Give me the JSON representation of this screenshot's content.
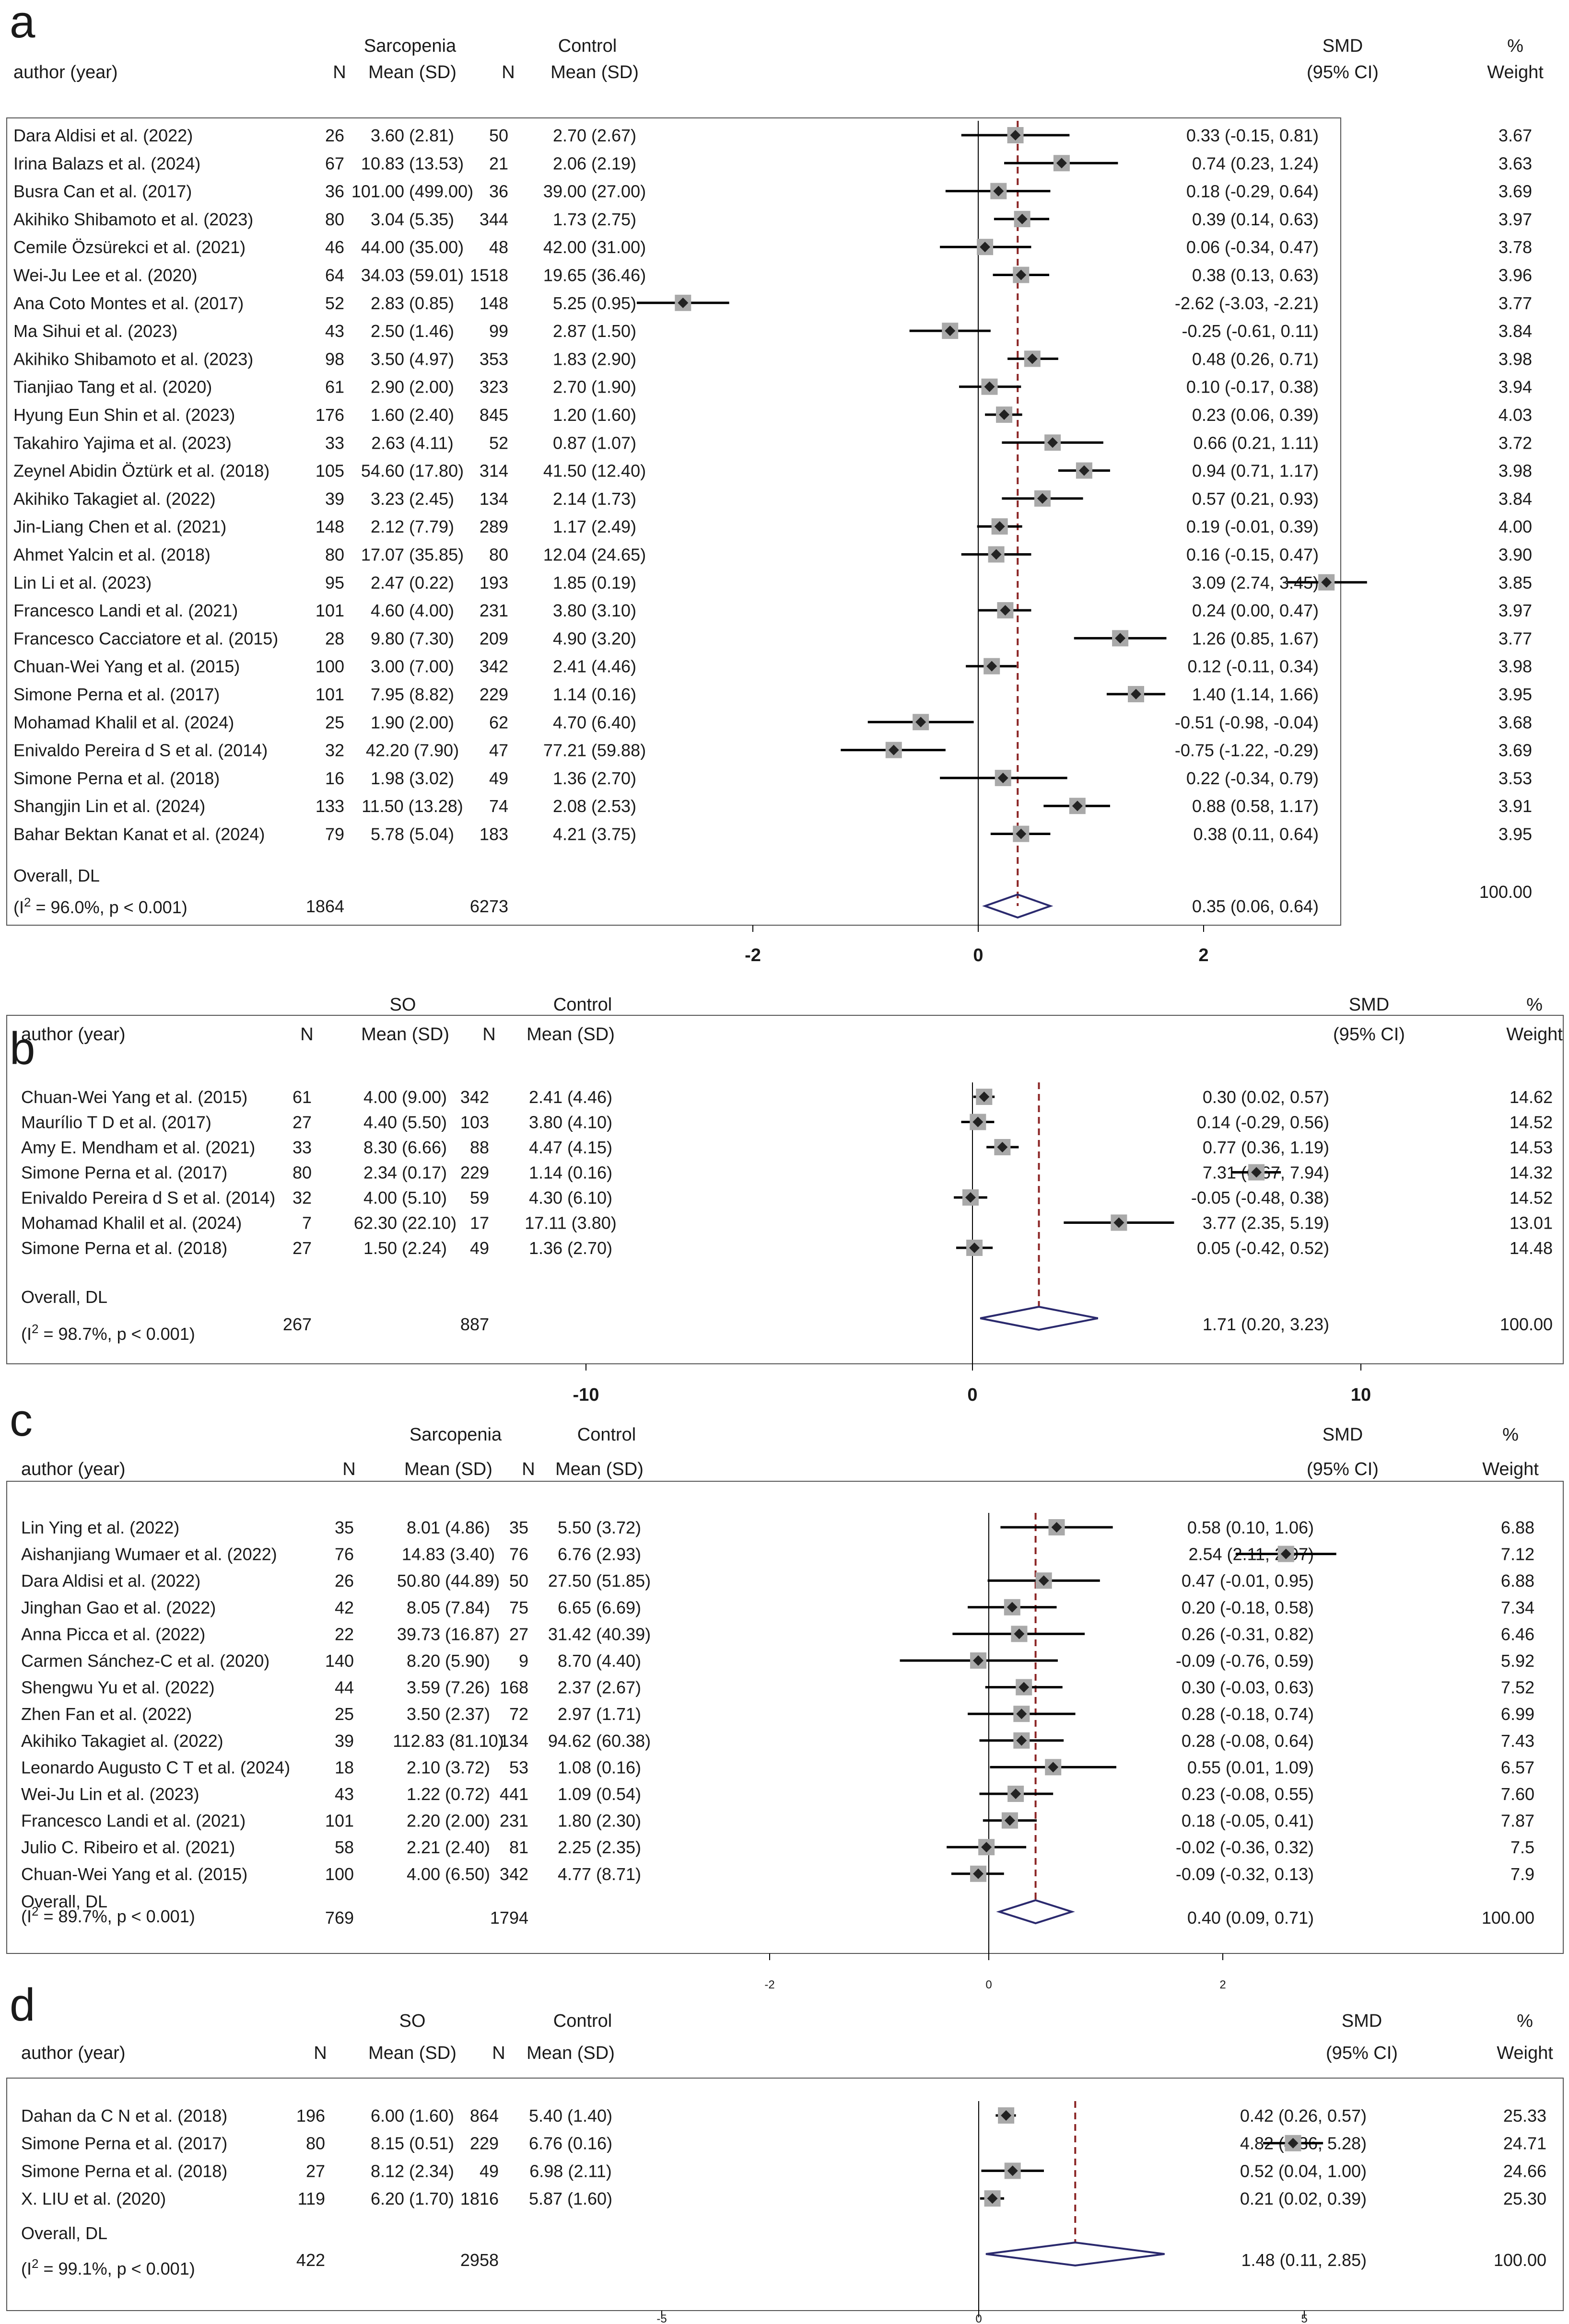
{
  "chart_data": [
    {
      "type": "forest",
      "panel_label": "a",
      "group1_name": "Sarcopenia",
      "group2_name": "Control",
      "col_author": "author (year)",
      "col_n": "N",
      "col_mean": "Mean (SD)",
      "col_smd": "SMD",
      "col_ci": "(95% CI)",
      "col_pct": "%",
      "col_weight": "Weight",
      "xlim": [
        -4,
        4
      ],
      "x_ticks": [
        "-2",
        "0",
        "2"
      ],
      "studies": [
        {
          "author": "Dara Aldisi et al. (2022)",
          "n1": "26",
          "m1": "3.60 (2.81)",
          "n2": "50",
          "m2": "2.70 (2.67)",
          "smd": 0.33,
          "lo": -0.15,
          "hi": 0.81,
          "ci_text": "0.33 (-0.15, 0.81)",
          "weight": "3.67"
        },
        {
          "author": "Irina Balazs  et al. (2024)",
          "n1": "67",
          "m1": "10.83 (13.53)",
          "n2": "21",
          "m2": "2.06 (2.19)",
          "smd": 0.74,
          "lo": 0.23,
          "hi": 1.24,
          "ci_text": "0.74 (0.23, 1.24)",
          "weight": "3.63"
        },
        {
          "author": "Busra Can et al. (2017)",
          "n1": "36",
          "m1": "101.00 (499.00)",
          "n2": "36",
          "m2": "39.00 (27.00)",
          "smd": 0.18,
          "lo": -0.29,
          "hi": 0.64,
          "ci_text": "0.18 (-0.29, 0.64)",
          "weight": "3.69"
        },
        {
          "author": "Akihiko Shibamoto et al. (2023)",
          "n1": "80",
          "m1": "3.04 (5.35)",
          "n2": "344",
          "m2": "1.73 (2.75)",
          "smd": 0.39,
          "lo": 0.14,
          "hi": 0.63,
          "ci_text": "0.39 (0.14, 0.63)",
          "weight": "3.97"
        },
        {
          "author": "Cemile Özsürekci et al. (2021)",
          "n1": "46",
          "m1": "44.00 (35.00)",
          "n2": "48",
          "m2": "42.00 (31.00)",
          "smd": 0.06,
          "lo": -0.34,
          "hi": 0.47,
          "ci_text": "0.06 (-0.34, 0.47)",
          "weight": "3.78"
        },
        {
          "author": "Wei-Ju Lee et al. (2020)",
          "n1": "64",
          "m1": "34.03 (59.01)",
          "n2": "1518",
          "m2": "19.65 (36.46)",
          "smd": 0.38,
          "lo": 0.13,
          "hi": 0.63,
          "ci_text": "0.38 (0.13, 0.63)",
          "weight": "3.96"
        },
        {
          "author": "Ana Coto Montes et al. (2017)",
          "n1": "52",
          "m1": "2.83 (0.85)",
          "n2": "148",
          "m2": "5.25 (0.95)",
          "smd": -2.62,
          "lo": -3.03,
          "hi": -2.21,
          "ci_text": "-2.62 (-3.03, -2.21)",
          "weight": "3.77"
        },
        {
          "author": "Ma Sihui et al. (2023)",
          "n1": "43",
          "m1": "2.50 (1.46)",
          "n2": "99",
          "m2": "2.87 (1.50)",
          "smd": -0.25,
          "lo": -0.61,
          "hi": 0.11,
          "ci_text": "-0.25 (-0.61, 0.11)",
          "weight": "3.84"
        },
        {
          "author": "Akihiko Shibamoto et al. (2023)",
          "n1": "98",
          "m1": "3.50 (4.97)",
          "n2": "353",
          "m2": "1.83 (2.90)",
          "smd": 0.48,
          "lo": 0.26,
          "hi": 0.71,
          "ci_text": "0.48 (0.26, 0.71)",
          "weight": "3.98"
        },
        {
          "author": "Tianjiao Tang et al. (2020)",
          "n1": "61",
          "m1": "2.90 (2.00)",
          "n2": "323",
          "m2": "2.70 (1.90)",
          "smd": 0.1,
          "lo": -0.17,
          "hi": 0.38,
          "ci_text": "0.10 (-0.17, 0.38)",
          "weight": "3.94"
        },
        {
          "author": "Hyung Eun Shin  et al. (2023)",
          "n1": "176",
          "m1": "1.60 (2.40)",
          "n2": "845",
          "m2": "1.20 (1.60)",
          "smd": 0.23,
          "lo": 0.06,
          "hi": 0.39,
          "ci_text": "0.23 (0.06, 0.39)",
          "weight": "4.03"
        },
        {
          "author": "Takahiro Yajima et al. (2023)",
          "n1": "33",
          "m1": "2.63 (4.11)",
          "n2": "52",
          "m2": "0.87 (1.07)",
          "smd": 0.66,
          "lo": 0.21,
          "hi": 1.11,
          "ci_text": "0.66 (0.21, 1.11)",
          "weight": "3.72"
        },
        {
          "author": "Zeynel Abidin Öztürk  et al. (2018)",
          "n1": "105",
          "m1": "54.60 (17.80)",
          "n2": "314",
          "m2": "41.50 (12.40)",
          "smd": 0.94,
          "lo": 0.71,
          "hi": 1.17,
          "ci_text": "0.94 (0.71, 1.17)",
          "weight": "3.98"
        },
        {
          "author": "Akihiko Takagiet al. (2022)",
          "n1": "39",
          "m1": "3.23 (2.45)",
          "n2": "134",
          "m2": "2.14 (1.73)",
          "smd": 0.57,
          "lo": 0.21,
          "hi": 0.93,
          "ci_text": "0.57 (0.21, 0.93)",
          "weight": "3.84"
        },
        {
          "author": "Jin-Liang Chen et al. (2021)",
          "n1": "148",
          "m1": "2.12 (7.79)",
          "n2": "289",
          "m2": "1.17 (2.49)",
          "smd": 0.19,
          "lo": -0.01,
          "hi": 0.39,
          "ci_text": "0.19 (-0.01, 0.39)",
          "weight": "4.00"
        },
        {
          "author": "Ahmet Yalcin  et al. (2018)",
          "n1": "80",
          "m1": "17.07 (35.85)",
          "n2": "80",
          "m2": "12.04 (24.65)",
          "smd": 0.16,
          "lo": -0.15,
          "hi": 0.47,
          "ci_text": "0.16 (-0.15, 0.47)",
          "weight": "3.90"
        },
        {
          "author": "Lin Li et al. (2023)",
          "n1": "95",
          "m1": "2.47 (0.22)",
          "n2": "193",
          "m2": "1.85 (0.19)",
          "smd": 3.09,
          "lo": 2.74,
          "hi": 3.45,
          "ci_text": "3.09 (2.74, 3.45)",
          "weight": "3.85"
        },
        {
          "author": "Francesco Landi et al. (2021)",
          "n1": "101",
          "m1": "4.60 (4.00)",
          "n2": "231",
          "m2": "3.80 (3.10)",
          "smd": 0.24,
          "lo": 0.0,
          "hi": 0.47,
          "ci_text": "0.24 (0.00, 0.47)",
          "weight": "3.97"
        },
        {
          "author": "Francesco Cacciatore et al. (2015)",
          "n1": "28",
          "m1": "9.80 (7.30)",
          "n2": "209",
          "m2": "4.90 (3.20)",
          "smd": 1.26,
          "lo": 0.85,
          "hi": 1.67,
          "ci_text": "1.26 (0.85, 1.67)",
          "weight": "3.77"
        },
        {
          "author": "Chuan-Wei Yang  et al. (2015)",
          "n1": "100",
          "m1": "3.00 (7.00)",
          "n2": "342",
          "m2": "2.41 (4.46)",
          "smd": 0.12,
          "lo": -0.11,
          "hi": 0.34,
          "ci_text": "0.12 (-0.11, 0.34)",
          "weight": "3.98"
        },
        {
          "author": "Simone Perna  et al. (2017)",
          "n1": "101",
          "m1": "7.95 (8.82)",
          "n2": "229",
          "m2": "1.14 (0.16)",
          "smd": 1.4,
          "lo": 1.14,
          "hi": 1.66,
          "ci_text": "1.40 (1.14, 1.66)",
          "weight": "3.95"
        },
        {
          "author": "Mohamad Khalil et al.  (2024)",
          "n1": "25",
          "m1": "1.90 (2.00)",
          "n2": "62",
          "m2": "4.70 (6.40)",
          "smd": -0.51,
          "lo": -0.98,
          "hi": -0.04,
          "ci_text": "-0.51 (-0.98, -0.04)",
          "weight": "3.68"
        },
        {
          "author": "Enivaldo Pereira d S et al. (2014)",
          "n1": "32",
          "m1": "42.20 (7.90)",
          "n2": "47",
          "m2": "77.21 (59.88)",
          "smd": -0.75,
          "lo": -1.22,
          "hi": -0.29,
          "ci_text": "-0.75 (-1.22, -0.29)",
          "weight": "3.69"
        },
        {
          "author": "Simone Perna  et al. (2018)",
          "n1": "16",
          "m1": "1.98 (3.02)",
          "n2": "49",
          "m2": "1.36 (2.70)",
          "smd": 0.22,
          "lo": -0.34,
          "hi": 0.79,
          "ci_text": "0.22 (-0.34, 0.79)",
          "weight": "3.53"
        },
        {
          "author": "Shangjin Lin et al. (2024)",
          "n1": "133",
          "m1": "11.50 (13.28)",
          "n2": "74",
          "m2": "2.08 (2.53)",
          "smd": 0.88,
          "lo": 0.58,
          "hi": 1.17,
          "ci_text": "0.88 (0.58, 1.17)",
          "weight": "3.91"
        },
        {
          "author": "Bahar Bektan Kanat et al. (2024)",
          "n1": "79",
          "m1": "5.78 (5.04)",
          "n2": "183",
          "m2": "4.21 (3.75)",
          "smd": 0.38,
          "lo": 0.11,
          "hi": 0.64,
          "ci_text": "0.38 (0.11, 0.64)",
          "weight": "3.95"
        }
      ],
      "overall": {
        "label": "Overall, DL",
        "n1": "1864",
        "n2": "6273",
        "smd": 0.35,
        "lo": 0.06,
        "hi": 0.64,
        "ci_text": "0.35 (0.06, 0.64)",
        "weight": "100.00"
      },
      "heterogeneity_prefix": "(I",
      "heterogeneity_sup": "2",
      "heterogeneity_rest": " = 96.0%, p < 0.001)"
    },
    {
      "type": "forest",
      "panel_label": "b",
      "group1_name": "SO",
      "group2_name": "Control",
      "col_author": "author (year)",
      "col_n": "N",
      "col_mean": "Mean (SD)",
      "col_smd": "SMD",
      "col_ci": "(95% CI)",
      "col_pct": "%",
      "col_weight": "Weight",
      "xlim": [
        -20,
        16
      ],
      "x_ticks": [
        "-10",
        "0",
        "10"
      ],
      "studies": [
        {
          "author": "Chuan-Wei Yang et al. (2015)",
          "n1": "61",
          "m1": "4.00 (9.00)",
          "n2": "342",
          "m2": "2.41 (4.46)",
          "smd": 0.3,
          "lo": 0.02,
          "hi": 0.57,
          "ci_text": "0.30 (0.02, 0.57)",
          "weight": "14.62"
        },
        {
          "author": "Maurílio  T D et al. (2017)",
          "n1": "27",
          "m1": "4.40 (5.50)",
          "n2": "103",
          "m2": "3.80 (4.10)",
          "smd": 0.14,
          "lo": -0.29,
          "hi": 0.56,
          "ci_text": "0.14 (-0.29, 0.56)",
          "weight": "14.52"
        },
        {
          "author": "Amy E. Mendham et al. (2021)",
          "n1": "33",
          "m1": "8.30 (6.66)",
          "n2": "88",
          "m2": "4.47 (4.15)",
          "smd": 0.77,
          "lo": 0.36,
          "hi": 1.19,
          "ci_text": "0.77 (0.36, 1.19)",
          "weight": "14.53"
        },
        {
          "author": "Simone Perna  et al. (2017)",
          "n1": "80",
          "m1": "2.34 (0.17)",
          "n2": "229",
          "m2": "1.14 (0.16)",
          "smd": 7.31,
          "lo": 6.67,
          "hi": 7.94,
          "ci_text": "7.31 (6.67, 7.94)",
          "weight": "14.32"
        },
        {
          "author": "Enivaldo Pereira d S et al. (2014)",
          "n1": "32",
          "m1": "4.00 (5.10)",
          "n2": "59",
          "m2": "4.30 (6.10)",
          "smd": -0.05,
          "lo": -0.48,
          "hi": 0.38,
          "ci_text": "-0.05 (-0.48, 0.38)",
          "weight": "14.52"
        },
        {
          "author": "Mohamad Khalil et al. (2024)",
          "n1": "7",
          "m1": "62.30 (22.10)",
          "n2": "17",
          "m2": "17.11 (3.80)",
          "smd": 3.77,
          "lo": 2.35,
          "hi": 5.19,
          "ci_text": "3.77 (2.35, 5.19)",
          "weight": "13.01"
        },
        {
          "author": "Simone Perna  et al. (2018)",
          "n1": "27",
          "m1": "1.50 (2.24)",
          "n2": "49",
          "m2": "1.36 (2.70)",
          "smd": 0.05,
          "lo": -0.42,
          "hi": 0.52,
          "ci_text": "0.05 (-0.42, 0.52)",
          "weight": "14.48"
        }
      ],
      "overall": {
        "label": "Overall, DL",
        "n1": "267",
        "n2": "887",
        "smd": 1.71,
        "lo": 0.2,
        "hi": 3.23,
        "ci_text": "1.71 (0.20, 3.23)",
        "weight": "100.00"
      },
      "heterogeneity_prefix": "(I",
      "heterogeneity_sup": "2",
      "heterogeneity_rest": " = 98.7%, p < 0.001)"
    },
    {
      "type": "forest",
      "panel_label": "c",
      "group1_name": "Sarcopenia",
      "group2_name": "Control",
      "col_author": "author (year)",
      "col_n": "N",
      "col_mean": "Mean (SD)",
      "col_smd": "SMD",
      "col_ci": "(95% CI)",
      "col_pct": "%",
      "col_weight": "Weight",
      "xlim": [
        -4,
        3.5
      ],
      "x_ticks": [
        "-2",
        "0",
        "2"
      ],
      "studies": [
        {
          "author": "Lin Ying et al. (2022)",
          "n1": "35",
          "m1": "8.01 (4.86)",
          "n2": "35",
          "m2": "5.50 (3.72)",
          "smd": 0.58,
          "lo": 0.1,
          "hi": 1.06,
          "ci_text": "0.58 (0.10, 1.06)",
          "weight": "6.88"
        },
        {
          "author": "Aishanjiang Wumaer et al. (2022)",
          "n1": "76",
          "m1": "14.83 (3.40)",
          "n2": "76",
          "m2": "6.76 (2.93)",
          "smd": 2.54,
          "lo": 2.11,
          "hi": 2.97,
          "ci_text": "2.54 (2.11, 2.97)",
          "weight": "7.12"
        },
        {
          "author": "Dara Aldisi et al. (2022)",
          "n1": "26",
          "m1": "50.80 (44.89)",
          "n2": "50",
          "m2": "27.50 (51.85)",
          "smd": 0.47,
          "lo": -0.01,
          "hi": 0.95,
          "ci_text": "0.47 (-0.01, 0.95)",
          "weight": "6.88"
        },
        {
          "author": "Jinghan Gao   et al. (2022)",
          "n1": "42",
          "m1": "8.05 (7.84)",
          "n2": "75",
          "m2": "6.65 (6.69)",
          "smd": 0.2,
          "lo": -0.18,
          "hi": 0.58,
          "ci_text": "0.20 (-0.18, 0.58)",
          "weight": "7.34"
        },
        {
          "author": "Anna Picca et al. (2022)",
          "n1": "22",
          "m1": "39.73 (16.87)",
          "n2": "27",
          "m2": "31.42 (40.39)",
          "smd": 0.26,
          "lo": -0.31,
          "hi": 0.82,
          "ci_text": "0.26 (-0.31, 0.82)",
          "weight": "6.46"
        },
        {
          "author": "Carmen Sánchez-C et al. (2020)",
          "n1": "140",
          "m1": "8.20 (5.90)",
          "n2": "9",
          "m2": "8.70 (4.40)",
          "smd": -0.09,
          "lo": -0.76,
          "hi": 0.59,
          "ci_text": "-0.09 (-0.76, 0.59)",
          "weight": "5.92"
        },
        {
          "author": "Shengwu Yu et al. (2022)",
          "n1": "44",
          "m1": "3.59 (7.26)",
          "n2": "168",
          "m2": "2.37 (2.67)",
          "smd": 0.3,
          "lo": -0.03,
          "hi": 0.63,
          "ci_text": "0.30 (-0.03, 0.63)",
          "weight": "7.52"
        },
        {
          "author": "Zhen Fan et al. (2022)",
          "n1": "25",
          "m1": "3.50 (2.37)",
          "n2": "72",
          "m2": "2.97 (1.71)",
          "smd": 0.28,
          "lo": -0.18,
          "hi": 0.74,
          "ci_text": "0.28 (-0.18, 0.74)",
          "weight": "6.99"
        },
        {
          "author": "Akihiko Takagiet al. (2022)",
          "n1": "39",
          "m1": "112.83 (81.10)",
          "n2": "134",
          "m2": "94.62 (60.38)",
          "smd": 0.28,
          "lo": -0.08,
          "hi": 0.64,
          "ci_text": "0.28 (-0.08, 0.64)",
          "weight": "7.43"
        },
        {
          "author": "Leonardo Augusto C T et al.  (2024)",
          "n1": "18",
          "m1": "2.10 (3.72)",
          "n2": "53",
          "m2": "1.08 (0.16)",
          "smd": 0.55,
          "lo": 0.01,
          "hi": 1.09,
          "ci_text": "0.55 (0.01, 1.09)",
          "weight": "6.57"
        },
        {
          "author": "Wei-Ju Lin et al. (2023)",
          "n1": "43",
          "m1": "1.22 (0.72)",
          "n2": "441",
          "m2": "1.09 (0.54)",
          "smd": 0.23,
          "lo": -0.08,
          "hi": 0.55,
          "ci_text": "0.23 (-0.08, 0.55)",
          "weight": "7.60"
        },
        {
          "author": "Francesco Landi et al. (2021)",
          "n1": "101",
          "m1": "2.20 (2.00)",
          "n2": "231",
          "m2": "1.80 (2.30)",
          "smd": 0.18,
          "lo": -0.05,
          "hi": 0.41,
          "ci_text": "0.18 (-0.05, 0.41)",
          "weight": "7.87"
        },
        {
          "author": "Julio C. Ribeiro et al. (2021)",
          "n1": "58",
          "m1": "2.21 (2.40)",
          "n2": "81",
          "m2": "2.25 (2.35)",
          "smd": -0.02,
          "lo": -0.36,
          "hi": 0.32,
          "ci_text": "-0.02 (-0.36, 0.32)",
          "weight": "7.5"
        },
        {
          "author": "Chuan-Wei Yang et al. (2015)",
          "n1": "100",
          "m1": "4.00 (6.50)",
          "n2": "342",
          "m2": "4.77 (8.71)",
          "smd": -0.09,
          "lo": -0.32,
          "hi": 0.13,
          "ci_text": "-0.09 (-0.32, 0.13)",
          "weight": "7.9"
        }
      ],
      "overall": {
        "label": "Overall, DL",
        "n1": "769",
        "n2": "1794",
        "smd": 0.4,
        "lo": 0.09,
        "hi": 0.71,
        "ci_text": "0.40 (0.09, 0.71)",
        "weight": "100.00"
      },
      "heterogeneity_prefix": "(I",
      "heterogeneity_sup": "2",
      "heterogeneity_rest": " = 89.7%, p < 0.001)"
    },
    {
      "type": "forest",
      "panel_label": "d",
      "group1_name": "SO",
      "group2_name": "Control",
      "col_author": "author (year)",
      "col_n": "N",
      "col_mean": "Mean (SD)",
      "col_smd": "SMD",
      "col_ci": "(95% CI)",
      "col_pct": "%",
      "col_weight": "Weight",
      "xlim": [
        -7.5,
        6
      ],
      "x_ticks": [
        "-5",
        "0",
        "5"
      ],
      "studies": [
        {
          "author": "Dahan da C N et al. (2018)",
          "n1": "196",
          "m1": "6.00 (1.60)",
          "n2": "864",
          "m2": "5.40 (1.40)",
          "smd": 0.42,
          "lo": 0.26,
          "hi": 0.57,
          "ci_text": "0.42 (0.26, 0.57)",
          "weight": "25.33"
        },
        {
          "author": "Simone Perna  et al. (2017)",
          "n1": "80",
          "m1": "8.15 (0.51)",
          "n2": "229",
          "m2": "6.76 (0.16)",
          "smd": 4.82,
          "lo": 4.36,
          "hi": 5.28,
          "ci_text": "4.82 (4.36, 5.28)",
          "weight": "24.71"
        },
        {
          "author": "Simone Perna  et al. (2018)",
          "n1": "27",
          "m1": "8.12 (2.34)",
          "n2": "49",
          "m2": "6.98 (2.11)",
          "smd": 0.52,
          "lo": 0.04,
          "hi": 1.0,
          "ci_text": "0.52 (0.04, 1.00)",
          "weight": "24.66"
        },
        {
          "author": "X. LIU et al. (2020)",
          "n1": "119",
          "m1": "6.20 (1.70)",
          "n2": "1816",
          "m2": "5.87 (1.60)",
          "smd": 0.21,
          "lo": 0.02,
          "hi": 0.39,
          "ci_text": "0.21 (0.02, 0.39)",
          "weight": "25.30"
        }
      ],
      "overall": {
        "label": "Overall, DL",
        "n1": "422",
        "n2": "2958",
        "smd": 1.48,
        "lo": 0.11,
        "hi": 2.85,
        "ci_text": "1.48 (0.11, 2.85)",
        "weight": "100.00"
      },
      "heterogeneity_prefix": "(I",
      "heterogeneity_sup": "2",
      "heterogeneity_rest": " = 99.1%, p < 0.001)"
    }
  ],
  "colors": {
    "text": "#1a1a1a",
    "axis": "#000000",
    "marker_box": "#a9a9a9",
    "marker_dot": "#222222",
    "reference_line": "#8b2525",
    "diamond": "#2b2a6e",
    "panel_border": "#555555"
  }
}
